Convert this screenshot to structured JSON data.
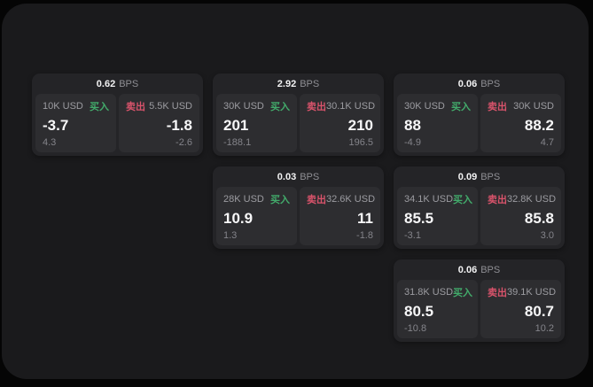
{
  "colors": {
    "page_bg": "#1a1a1c",
    "card_bg": "#242427",
    "panel_bg": "#2d2d30",
    "green": "#42ab6b",
    "red": "#d9536b"
  },
  "cards": [
    {
      "spread": "0.62",
      "unit": "BPS",
      "buy": {
        "amount": "10K USD",
        "side": "买入",
        "price": "-3.7",
        "change": "4.3"
      },
      "sell": {
        "side": "卖出",
        "amount": "5.5K USD",
        "price": "-1.8",
        "change": "-2.6"
      }
    },
    {
      "spread": "2.92",
      "unit": "BPS",
      "buy": {
        "amount": "30K USD",
        "side": "买入",
        "price": "201",
        "change": "-188.1"
      },
      "sell": {
        "side": "卖出",
        "amount": "30.1K USD",
        "price": "210",
        "change": "196.5"
      }
    },
    {
      "spread": "0.06",
      "unit": "BPS",
      "buy": {
        "amount": "30K USD",
        "side": "买入",
        "price": "88",
        "change": "-4.9"
      },
      "sell": {
        "side": "卖出",
        "amount": "30K USD",
        "price": "88.2",
        "change": "4.7"
      }
    },
    {
      "spread": "0.03",
      "unit": "BPS",
      "buy": {
        "amount": "28K USD",
        "side": "买入",
        "price": "10.9",
        "change": "1.3"
      },
      "sell": {
        "side": "卖出",
        "amount": "32.6K USD",
        "price": "11",
        "change": "-1.8"
      }
    },
    {
      "spread": "0.09",
      "unit": "BPS",
      "buy": {
        "amount": "34.1K USD",
        "side": "买入",
        "price": "85.5",
        "change": "-3.1"
      },
      "sell": {
        "side": "卖出",
        "amount": "32.8K USD",
        "price": "85.8",
        "change": "3.0"
      }
    },
    {
      "spread": "0.06",
      "unit": "BPS",
      "buy": {
        "amount": "31.8K USD",
        "side": "买入",
        "price": "80.5",
        "change": "-10.8"
      },
      "sell": {
        "side": "卖出",
        "amount": "39.1K USD",
        "price": "80.7",
        "change": "10.2"
      }
    }
  ]
}
